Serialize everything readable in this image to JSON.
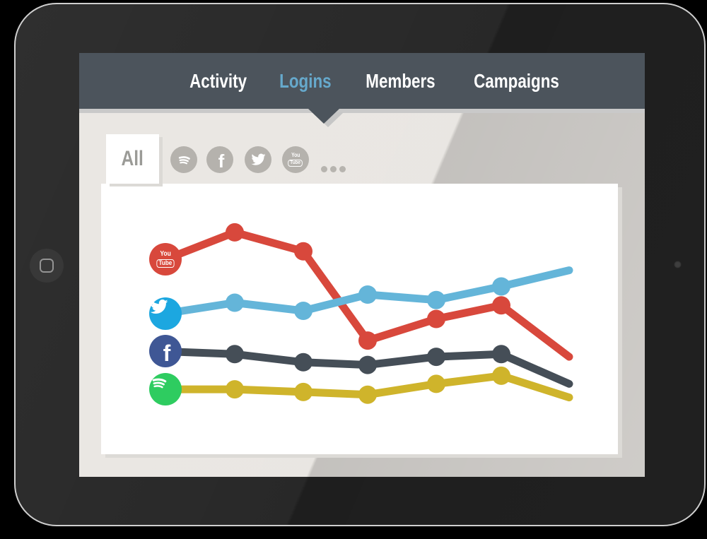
{
  "header": {
    "tabs": [
      {
        "label": "Activity",
        "active": false
      },
      {
        "label": "Logins",
        "active": true
      },
      {
        "label": "Members",
        "active": false
      },
      {
        "label": "Campaigns",
        "active": false
      }
    ]
  },
  "filter_bar": {
    "all_label": "All",
    "platform_icons": [
      {
        "name": "spotify-icon"
      },
      {
        "name": "facebook-icon"
      },
      {
        "name": "twitter-icon"
      },
      {
        "name": "youtube-icon"
      }
    ],
    "more_icon": "ellipsis-icon"
  },
  "colors": {
    "header_bg": "#4c545c",
    "active_tab": "#66a9cc",
    "content_bg": "#e9e6e2",
    "icon_gray": "#b5b2ad",
    "card_bg": "#ffffff"
  },
  "chart_data": {
    "type": "line",
    "points_per_series": 7,
    "x_axis": "7 unlabeled time steps",
    "y_axis": "unlabeled relative scale",
    "ylim": [
      0,
      100
    ],
    "grid": false,
    "legend": "platform icon at start of each line",
    "series": [
      {
        "name": "YouTube",
        "icon": "youtube-icon",
        "line_color": "#d8483c",
        "icon_color": "#d8483c",
        "values": [
          72,
          82,
          75,
          42,
          50,
          55,
          36
        ]
      },
      {
        "name": "Twitter",
        "icon": "twitter-icon",
        "line_color": "#64b5d9",
        "icon_color": "#1ca7e0",
        "values": [
          52,
          56,
          53,
          59,
          57,
          62,
          68
        ]
      },
      {
        "name": "Facebook",
        "icon": "facebook-icon",
        "line_color": "#454e57",
        "icon_color": "#3f5795",
        "values": [
          38,
          37,
          34,
          33,
          36,
          37,
          26
        ]
      },
      {
        "name": "Spotify",
        "icon": "spotify-icon",
        "line_color": "#cfb42b",
        "icon_color": "#2ecc60",
        "values": [
          24,
          24,
          23,
          22,
          26,
          29,
          21
        ]
      }
    ]
  }
}
